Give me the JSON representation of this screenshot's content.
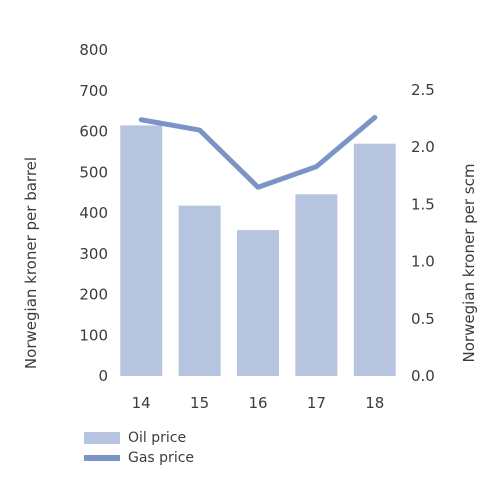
{
  "chart_data": {
    "type": "bar",
    "categories": [
      "14",
      "15",
      "16",
      "17",
      "18"
    ],
    "series": [
      {
        "name": "Oil price",
        "type": "bar",
        "axis": "left",
        "color": "#b7c4df",
        "values": [
          615,
          418,
          358,
          446,
          570
        ]
      },
      {
        "name": "Gas price",
        "type": "line",
        "axis": "right",
        "color": "#7a95c5",
        "values": [
          2.24,
          2.15,
          1.65,
          1.83,
          2.26
        ]
      }
    ],
    "ylabel": "Norwegian kroner per barrel",
    "ylim": [
      0,
      800
    ],
    "yticks": [
      "0",
      "100",
      "200",
      "300",
      "400",
      "500",
      "600",
      "700",
      "800"
    ],
    "y2label": "Norwegian kroner per scm",
    "y2lim": [
      0,
      2.5
    ],
    "y2ticks": [
      "0.0",
      "0.5",
      "1.0",
      "1.5",
      "2.0",
      "2.5"
    ],
    "grid": false,
    "legend_position": "bottom-left"
  },
  "legend": {
    "items": [
      {
        "label": "Oil price",
        "kind": "bar",
        "color": "#b7c4df"
      },
      {
        "label": "Gas price",
        "kind": "line",
        "color": "#7a95c5"
      }
    ]
  }
}
